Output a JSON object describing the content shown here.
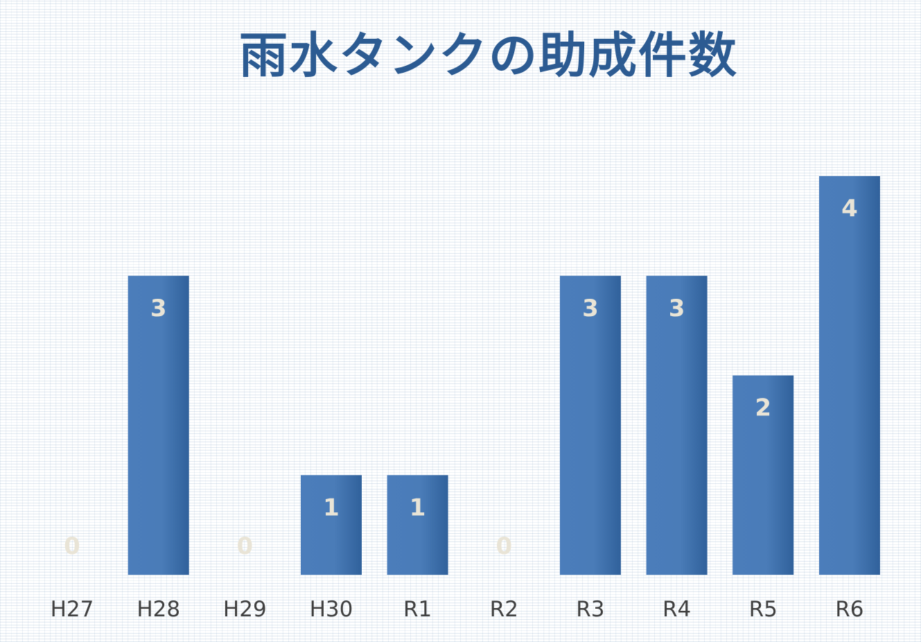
{
  "chart_data": {
    "type": "bar",
    "title": "雨水タンクの助成件数",
    "categories": [
      "H27",
      "H28",
      "H29",
      "H30",
      "R1",
      "R2",
      "R3",
      "R4",
      "R5",
      "R6"
    ],
    "values": [
      0,
      3,
      0,
      1,
      1,
      0,
      3,
      3,
      2,
      4
    ],
    "xlabel": "",
    "ylabel": "",
    "ylim": [
      0,
      4
    ],
    "grid": false,
    "legend": "none",
    "data_labels": true,
    "colors": {
      "bar": "#4a7cb8",
      "bar_edge": "#2f5d94",
      "data_label": "#e9e4d6",
      "title": "#2c5b92",
      "tick_label": "#404040"
    }
  }
}
